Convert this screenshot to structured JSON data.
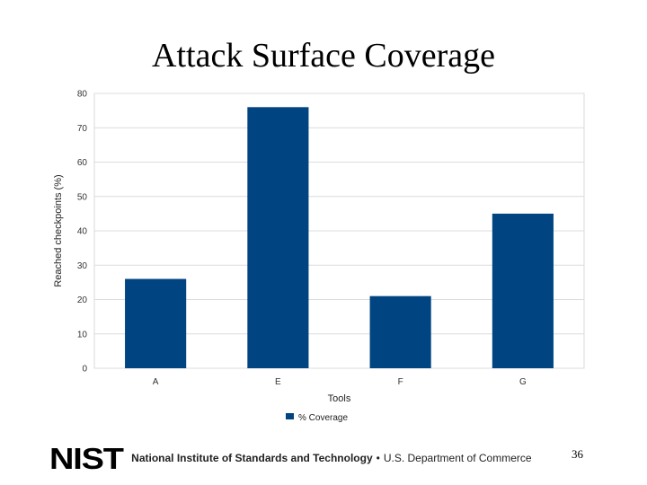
{
  "slide": {
    "title": "Attack Surface Coverage",
    "page_number": "36"
  },
  "footer": {
    "logo_text": "NIST",
    "institute": "National Institute of Standards and Technology",
    "separator": "•",
    "department": "U.S. Department of Commerce"
  },
  "chart_data": {
    "type": "bar",
    "title": "",
    "categories": [
      "A",
      "E",
      "F",
      "G"
    ],
    "series": [
      {
        "name": "% Coverage",
        "values": [
          26,
          76,
          21,
          45
        ],
        "color": "#004481"
      }
    ],
    "xlabel": "Tools",
    "ylabel": "Reached checkpoints (%)",
    "ylim": [
      0,
      80
    ],
    "yticks": [
      0,
      10,
      20,
      30,
      40,
      50,
      60,
      70,
      80
    ],
    "grid": true,
    "legend_position": "bottom"
  }
}
